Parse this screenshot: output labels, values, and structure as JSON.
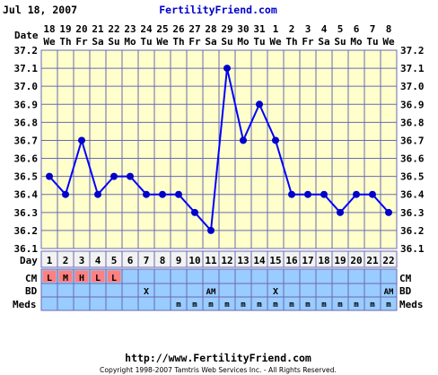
{
  "header": {
    "date_text": "Jul 18, 2007",
    "site_name": "FertilityFriend.com"
  },
  "footer": {
    "url": "http://www.FertilityFriend.com",
    "copyright": "Copyright 1998-2007 Tamtris Web Services Inc. - All Rights Reserved."
  },
  "labels": {
    "date": "Date",
    "day": "Day",
    "cm": "CM",
    "bd": "BD",
    "meds": "Meds"
  },
  "colors": {
    "chart_bg": "#ffffcc",
    "grid": "#6a6ab0",
    "line": "#0000ff",
    "marker": "#0000cc",
    "day_row_bg": "#f2f2f2",
    "row_bg": "#99ccff",
    "cm_cell": "#ff8080",
    "title_link": "#0000cc"
  },
  "dates": [
    {
      "num": "18",
      "dow": "We"
    },
    {
      "num": "19",
      "dow": "Th"
    },
    {
      "num": "20",
      "dow": "Fr"
    },
    {
      "num": "21",
      "dow": "Sa"
    },
    {
      "num": "22",
      "dow": "Su"
    },
    {
      "num": "23",
      "dow": "Mo"
    },
    {
      "num": "24",
      "dow": "Tu"
    },
    {
      "num": "25",
      "dow": "We"
    },
    {
      "num": "26",
      "dow": "Th"
    },
    {
      "num": "27",
      "dow": "Fr"
    },
    {
      "num": "28",
      "dow": "Sa"
    },
    {
      "num": "29",
      "dow": "Su"
    },
    {
      "num": "30",
      "dow": "Mo"
    },
    {
      "num": "31",
      "dow": "Tu"
    },
    {
      "num": "1",
      "dow": "We"
    },
    {
      "num": "2",
      "dow": "Th"
    },
    {
      "num": "3",
      "dow": "Fr"
    },
    {
      "num": "4",
      "dow": "Sa"
    },
    {
      "num": "5",
      "dow": "Su"
    },
    {
      "num": "6",
      "dow": "Mo"
    },
    {
      "num": "7",
      "dow": "Tu"
    },
    {
      "num": "8",
      "dow": "We"
    }
  ],
  "cycle_days": [
    "1",
    "2",
    "3",
    "4",
    "5",
    "6",
    "7",
    "8",
    "9",
    "10",
    "11",
    "12",
    "13",
    "14",
    "15",
    "16",
    "17",
    "18",
    "19",
    "20",
    "21",
    "22"
  ],
  "cm": [
    "L",
    "M",
    "H",
    "L",
    "L",
    "",
    "",
    "",
    "",
    "",
    "",
    "",
    "",
    "",
    "",
    "",
    "",
    "",
    "",
    "",
    "",
    ""
  ],
  "bd": [
    "",
    "",
    "",
    "",
    "",
    "",
    "X",
    "",
    "",
    "",
    "AM",
    "",
    "",
    "",
    "X",
    "",
    "",
    "",
    "",
    "",
    "",
    "AM"
  ],
  "meds": [
    "",
    "",
    "",
    "",
    "",
    "",
    "",
    "",
    "m",
    "m",
    "m",
    "m",
    "m",
    "m",
    "m",
    "m",
    "m",
    "m",
    "m",
    "m",
    "m",
    "m"
  ],
  "chart_data": {
    "type": "line",
    "title": "",
    "xlabel": "Day",
    "ylabel": "",
    "x": [
      1,
      2,
      3,
      4,
      5,
      6,
      7,
      8,
      9,
      10,
      11,
      12,
      13,
      14,
      15,
      16,
      17,
      18,
      19,
      20,
      21,
      22
    ],
    "values": [
      36.5,
      36.4,
      36.7,
      36.4,
      36.5,
      36.5,
      36.4,
      36.4,
      36.4,
      36.3,
      36.2,
      37.1,
      36.7,
      36.9,
      36.7,
      36.4,
      36.4,
      36.4,
      36.3,
      36.4,
      36.4,
      36.3
    ],
    "ylim": [
      36.1,
      37.2
    ],
    "y_ticks": [
      "37.2",
      "37.1",
      "37.0",
      "36.9",
      "36.8",
      "36.7",
      "36.6",
      "36.5",
      "36.4",
      "36.3",
      "36.2",
      "36.1"
    ],
    "grid": true
  }
}
